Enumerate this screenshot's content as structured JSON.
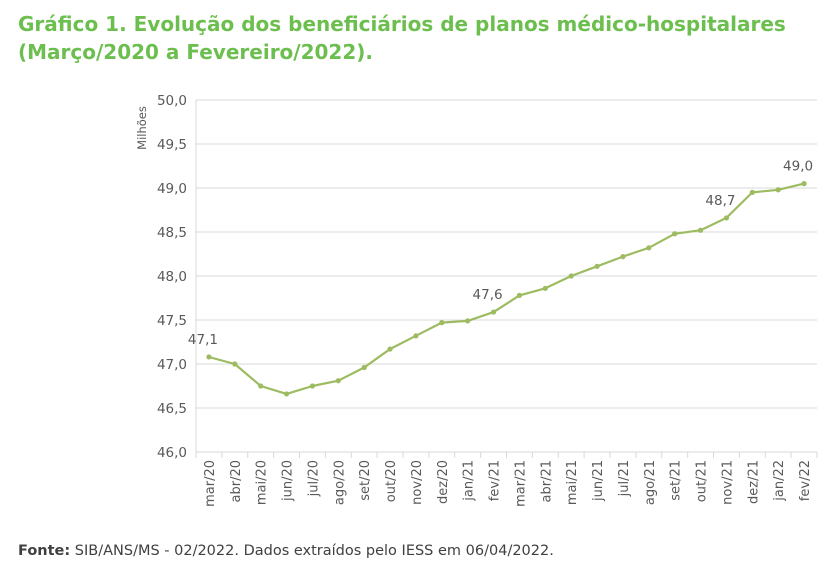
{
  "title_line1": "Gráfico 1. Evolução dos beneficiários de planos médico-hospitalares",
  "title_line2": "(Março/2020 a Fevereiro/2022).",
  "source_label": "Fonte:",
  "source_text": " SIB/ANS/MS - 02/2022. Dados extraídos pelo IESS em 06/04/2022.",
  "colors": {
    "title": "#6cbf4f",
    "line": "#9dbb61",
    "grid": "#d9d9d9",
    "axis_text": "#595959"
  },
  "chart_data": {
    "type": "line",
    "title": "",
    "xlabel": "",
    "ylabel": "Milhões",
    "ylim": [
      46.0,
      50.0
    ],
    "yticks": [
      "46,0",
      "46,5",
      "47,0",
      "47,5",
      "48,0",
      "48,5",
      "49,0",
      "49,5",
      "50,0"
    ],
    "grid": true,
    "categories": [
      "mar/20",
      "abr/20",
      "mai/20",
      "jun/20",
      "jul/20",
      "ago/20",
      "set/20",
      "out/20",
      "nov/20",
      "dez/20",
      "jan/21",
      "fev/21",
      "mar/21",
      "abr/21",
      "mai/21",
      "jun/21",
      "jul/21",
      "ago/21",
      "set/21",
      "out/21",
      "nov/21",
      "dez/21",
      "jan/22",
      "fev/22"
    ],
    "series": [
      {
        "values": [
          47.08,
          47.0,
          46.75,
          46.66,
          46.75,
          46.81,
          46.96,
          47.17,
          47.32,
          47.47,
          47.49,
          47.59,
          47.78,
          47.86,
          48.0,
          48.11,
          48.22,
          48.32,
          48.48,
          48.52,
          48.66,
          48.95,
          48.98,
          49.05
        ]
      }
    ],
    "data_labels": [
      {
        "index": 0,
        "text": "47,1"
      },
      {
        "index": 11,
        "text": "47,6"
      },
      {
        "index": 20,
        "text": "48,7"
      },
      {
        "index": 23,
        "text": "49,0"
      }
    ]
  }
}
